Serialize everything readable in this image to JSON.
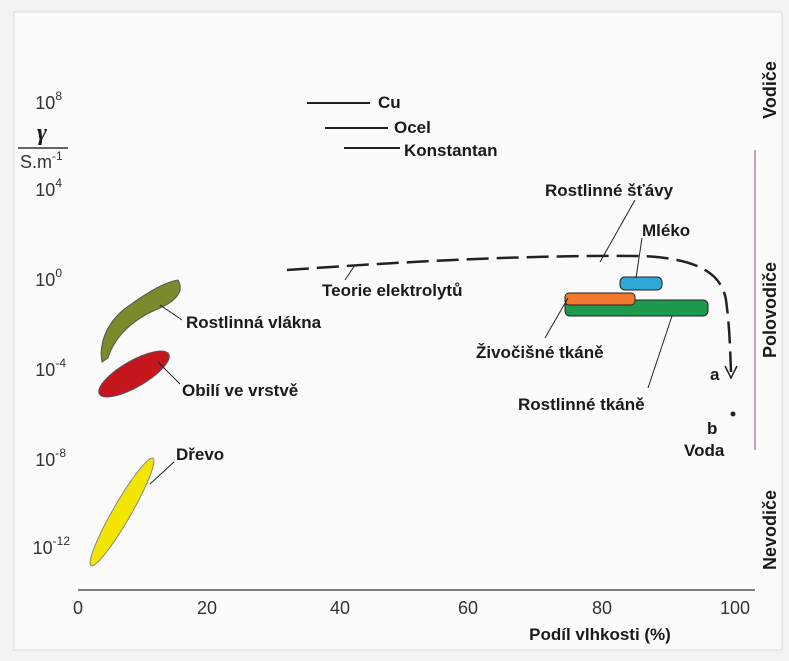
{
  "y_axis": {
    "symbol": "γ",
    "unit": "S.m",
    "unit_exp": "-1",
    "ticks": [
      {
        "base": "10",
        "exp": "8"
      },
      {
        "base": "10",
        "exp": "4"
      },
      {
        "base": "10",
        "exp": "0"
      },
      {
        "base": "10",
        "exp": "-4"
      },
      {
        "base": "10",
        "exp": "-8"
      },
      {
        "base": "10",
        "exp": "-12"
      }
    ]
  },
  "x_axis": {
    "label": "Podíl vlhkosti (%)",
    "ticks": [
      "0",
      "20",
      "40",
      "60",
      "80",
      "100"
    ]
  },
  "labels": {
    "cu": "Cu",
    "ocel": "Ocel",
    "konstantan": "Konstantan",
    "stavy": "Rostlinné šťávy",
    "mleko": "Mléko",
    "teorie": "Teorie elektrolytů",
    "vlakna": "Rostlinná vlákna",
    "zivocisne": "Živočišné tkáně",
    "obili": "Obilí ve vrstvě",
    "tkane": "Rostlinné tkáně",
    "a": "a",
    "b": "b",
    "voda": "Voda",
    "drevo": "Dřevo"
  },
  "zones": [
    "Vodiče",
    "Polovodiče",
    "Nevodiče"
  ]
}
